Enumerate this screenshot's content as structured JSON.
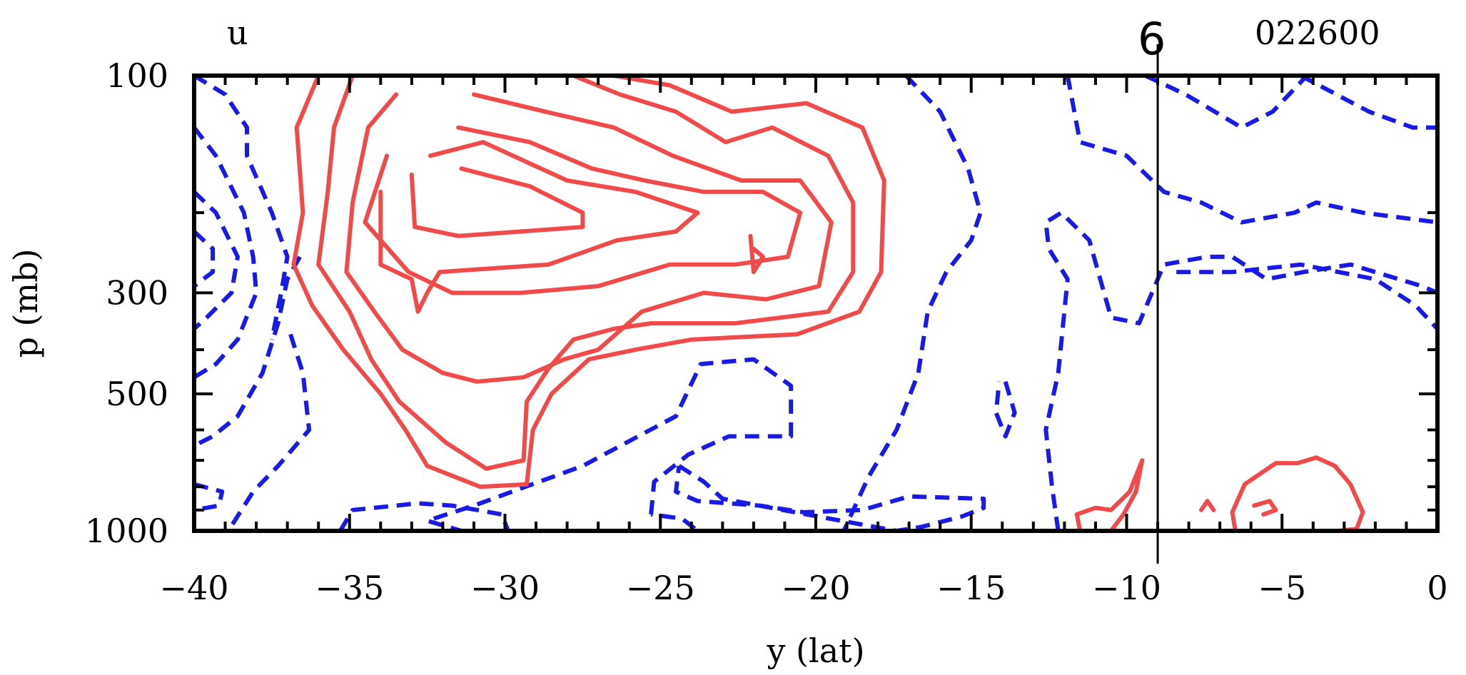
{
  "chart_data": {
    "type": "contour",
    "variable_label": "u",
    "timestamp": "022600",
    "marker": {
      "label": "6",
      "x": -9
    },
    "xlabel": "y (lat)",
    "ylabel": "p (mb)",
    "xlim": [
      -40,
      0
    ],
    "ylim": [
      1000,
      100
    ],
    "y_scale": "log",
    "x_ticks": [
      -40,
      -35,
      -30,
      -25,
      -20,
      -15,
      -10,
      -5,
      0
    ],
    "x_tick_labels": [
      "−40",
      "−35",
      "−30",
      "−25",
      "−20",
      "−15",
      "−10",
      "−5",
      "0"
    ],
    "y_tick_labels": [
      {
        "value": 100,
        "label": "100"
      },
      {
        "value": 300,
        "label": "300"
      },
      {
        "value": 500,
        "label": "500"
      },
      {
        "value": 1000,
        "label": "1000"
      }
    ],
    "y_minor_ticks": [
      100,
      200,
      300,
      400,
      500,
      600,
      700,
      800,
      900,
      1000
    ],
    "x_minor_step": 1,
    "colors": {
      "positive": "#f04a4a",
      "negative": "#1a1ae6",
      "frame": "#000000"
    },
    "positive_contours": [
      [
        [
          -36.0,
          100
        ],
        [
          -36.7,
          130
        ],
        [
          -36.5,
          200
        ],
        [
          -36.8,
          260
        ],
        [
          -36.2,
          320
        ],
        [
          -35.2,
          400
        ],
        [
          -34.0,
          500
        ],
        [
          -33.2,
          600
        ],
        [
          -32.5,
          720
        ],
        [
          -30.8,
          800
        ],
        [
          -29.3,
          790
        ],
        [
          -29.1,
          600
        ],
        [
          -28.5,
          500
        ],
        [
          -27.3,
          420
        ],
        [
          -25.8,
          400
        ],
        [
          -24.0,
          380
        ],
        [
          -20.6,
          370
        ],
        [
          -18.6,
          330
        ],
        [
          -17.9,
          270
        ],
        [
          -17.8,
          170
        ],
        [
          -18.5,
          130
        ],
        [
          -20.3,
          115
        ],
        [
          -22.7,
          120
        ],
        [
          -24.7,
          105
        ],
        [
          -26.5,
          100
        ]
      ],
      [
        [
          -34.9,
          100
        ],
        [
          -35.5,
          130
        ],
        [
          -35.7,
          180
        ],
        [
          -36.0,
          260
        ],
        [
          -35.0,
          330
        ],
        [
          -34.3,
          420
        ],
        [
          -33.4,
          520
        ],
        [
          -31.9,
          640
        ],
        [
          -30.6,
          730
        ],
        [
          -29.4,
          700
        ],
        [
          -29.3,
          520
        ],
        [
          -28.6,
          440
        ],
        [
          -27.8,
          380
        ],
        [
          -26.5,
          360
        ],
        [
          -25.3,
          350
        ],
        [
          -22.6,
          350
        ],
        [
          -19.6,
          330
        ],
        [
          -18.8,
          270
        ],
        [
          -18.8,
          190
        ],
        [
          -19.6,
          150
        ],
        [
          -21.4,
          130
        ],
        [
          -22.9,
          140
        ],
        [
          -24.5,
          120
        ],
        [
          -26.3,
          110
        ],
        [
          -27.8,
          100
        ]
      ],
      [
        [
          -33.5,
          110
        ],
        [
          -34.4,
          130
        ],
        [
          -34.9,
          190
        ],
        [
          -35.1,
          270
        ],
        [
          -34.2,
          330
        ],
        [
          -33.3,
          400
        ],
        [
          -32.0,
          450
        ],
        [
          -30.9,
          470
        ],
        [
          -29.4,
          460
        ],
        [
          -28.1,
          420
        ],
        [
          -27.0,
          400
        ],
        [
          -25.6,
          330
        ],
        [
          -23.6,
          300
        ],
        [
          -21.6,
          310
        ],
        [
          -19.9,
          290
        ],
        [
          -19.5,
          210
        ],
        [
          -20.5,
          170
        ],
        [
          -22.4,
          170
        ],
        [
          -24.6,
          150
        ],
        [
          -26.5,
          130
        ],
        [
          -28.7,
          120
        ],
        [
          -31.0,
          110
        ]
      ],
      [
        [
          -33.8,
          150
        ],
        [
          -34.5,
          210
        ],
        [
          -33.1,
          270
        ],
        [
          -31.7,
          300
        ],
        [
          -29.5,
          300
        ],
        [
          -27.0,
          290
        ],
        [
          -24.7,
          260
        ],
        [
          -22.6,
          260
        ],
        [
          -20.9,
          250
        ],
        [
          -20.5,
          200
        ],
        [
          -21.7,
          180
        ],
        [
          -23.6,
          180
        ],
        [
          -25.5,
          170
        ],
        [
          -27.2,
          160
        ],
        [
          -29.2,
          140
        ],
        [
          -31.5,
          130
        ]
      ],
      [
        [
          -34.0,
          180
        ],
        [
          -34.0,
          260
        ],
        [
          -33.0,
          280
        ],
        [
          -32.8,
          330
        ],
        [
          -32.5,
          300
        ],
        [
          -32.1,
          270
        ],
        [
          -28.6,
          260
        ],
        [
          -26.4,
          230
        ],
        [
          -24.5,
          220
        ],
        [
          -23.8,
          200
        ],
        [
          -25.8,
          180
        ],
        [
          -28.0,
          170
        ],
        [
          -30.7,
          140
        ],
        [
          -32.4,
          150
        ]
      ],
      [
        [
          -33.0,
          165
        ],
        [
          -32.9,
          215
        ],
        [
          -31.5,
          225
        ],
        [
          -29.5,
          220
        ],
        [
          -27.5,
          215
        ],
        [
          -27.5,
          200
        ],
        [
          -29.2,
          175
        ],
        [
          -31.4,
          160
        ]
      ],
      [
        [
          -22.1,
          225
        ],
        [
          -22.0,
          270
        ],
        [
          -21.7,
          250
        ],
        [
          -22.0,
          240
        ]
      ],
      [
        [
          -11.5,
          1000
        ],
        [
          -11.6,
          920
        ],
        [
          -11.0,
          890
        ],
        [
          -10.5,
          900
        ],
        [
          -9.9,
          820
        ],
        [
          -9.5,
          700
        ],
        [
          -9.7,
          820
        ],
        [
          -10.1,
          920
        ],
        [
          -10.5,
          1000
        ]
      ],
      [
        [
          -6.5,
          1000
        ],
        [
          -6.6,
          910
        ],
        [
          -6.2,
          790
        ],
        [
          -5.2,
          710
        ],
        [
          -4.5,
          710
        ],
        [
          -3.9,
          690
        ],
        [
          -3.3,
          720
        ],
        [
          -2.8,
          790
        ],
        [
          -2.4,
          910
        ],
        [
          -2.6,
          990
        ],
        [
          -3.2,
          1000
        ]
      ],
      [
        [
          -7.6,
          900
        ],
        [
          -7.4,
          860
        ],
        [
          -7.2,
          900
        ]
      ],
      [
        [
          -5.9,
          880
        ],
        [
          -5.4,
          860
        ],
        [
          -5.2,
          900
        ],
        [
          -5.6,
          920
        ]
      ]
    ],
    "negative_contours": [
      [
        [
          -40.0,
          100
        ],
        [
          -39.0,
          110
        ],
        [
          -38.3,
          130
        ],
        [
          -38.3,
          150
        ],
        [
          -37.5,
          200
        ],
        [
          -37.0,
          250
        ],
        [
          -37.2,
          300
        ],
        [
          -37.5,
          380
        ]
      ],
      [
        [
          -40.0,
          130
        ],
        [
          -39.3,
          150
        ],
        [
          -38.4,
          200
        ],
        [
          -38.1,
          250
        ],
        [
          -38.0,
          300
        ],
        [
          -38.6,
          380
        ],
        [
          -39.3,
          430
        ],
        [
          -40.0,
          460
        ]
      ],
      [
        [
          -40.0,
          180
        ],
        [
          -39.3,
          200
        ],
        [
          -38.6,
          250
        ],
        [
          -38.8,
          300
        ],
        [
          -39.6,
          340
        ],
        [
          -40.0,
          360
        ]
      ],
      [
        [
          -40.0,
          220
        ],
        [
          -39.4,
          240
        ],
        [
          -39.4,
          270
        ],
        [
          -40.0,
          290
        ]
      ],
      [
        [
          -36.6,
          250
        ],
        [
          -37.0,
          280
        ],
        [
          -37.3,
          350
        ],
        [
          -37.8,
          450
        ],
        [
          -38.6,
          560
        ],
        [
          -39.4,
          620
        ],
        [
          -40.0,
          650
        ]
      ],
      [
        [
          -36.9,
          370
        ],
        [
          -36.5,
          450
        ],
        [
          -36.3,
          600
        ],
        [
          -37.3,
          720
        ],
        [
          -38.1,
          820
        ],
        [
          -38.9,
          1000
        ]
      ],
      [
        [
          -40.0,
          790
        ],
        [
          -39.1,
          820
        ],
        [
          -39.2,
          880
        ],
        [
          -40.0,
          900
        ]
      ],
      [
        [
          -35.3,
          1000
        ],
        [
          -34.9,
          900
        ],
        [
          -32.8,
          870
        ],
        [
          -31.7,
          880
        ],
        [
          -30.1,
          920
        ],
        [
          -29.9,
          1000
        ]
      ],
      [
        [
          -25.3,
          920
        ],
        [
          -25.2,
          780
        ],
        [
          -24.1,
          680
        ],
        [
          -22.8,
          620
        ],
        [
          -20.8,
          620
        ],
        [
          -20.8,
          480
        ],
        [
          -22.0,
          420
        ],
        [
          -23.7,
          430
        ],
        [
          -24.5,
          560
        ],
        [
          -27.5,
          720
        ],
        [
          -31.0,
          880
        ],
        [
          -32.5,
          950
        ],
        [
          -31.4,
          1000
        ],
        [
          -23.8,
          1000
        ],
        [
          -24.3,
          940
        ],
        [
          -25.3,
          920
        ]
      ],
      [
        [
          -24.4,
          720
        ],
        [
          -23.6,
          780
        ],
        [
          -23.0,
          850
        ],
        [
          -20.3,
          920
        ],
        [
          -17.4,
          1000
        ],
        [
          -16.6,
          980
        ],
        [
          -15.3,
          930
        ],
        [
          -14.6,
          890
        ],
        [
          -14.6,
          850
        ],
        [
          -17.0,
          840
        ],
        [
          -18.5,
          900
        ],
        [
          -20.4,
          910
        ],
        [
          -21.8,
          880
        ],
        [
          -23.8,
          860
        ],
        [
          -24.5,
          820
        ],
        [
          -24.4,
          720
        ]
      ],
      [
        [
          -17.1,
          100
        ],
        [
          -16.0,
          120
        ],
        [
          -15.1,
          160
        ],
        [
          -14.7,
          200
        ],
        [
          -15.0,
          230
        ],
        [
          -15.8,
          270
        ],
        [
          -16.4,
          330
        ],
        [
          -16.7,
          450
        ],
        [
          -17.4,
          600
        ],
        [
          -18.3,
          760
        ],
        [
          -19.1,
          1000
        ]
      ],
      [
        [
          -13.9,
          470
        ],
        [
          -13.6,
          550
        ],
        [
          -13.9,
          620
        ],
        [
          -14.2,
          550
        ],
        [
          -14.1,
          470
        ]
      ],
      [
        [
          -12.2,
          1000
        ],
        [
          -12.4,
          800
        ],
        [
          -12.6,
          600
        ],
        [
          -12.2,
          450
        ],
        [
          -11.9,
          280
        ],
        [
          -12.5,
          240
        ],
        [
          -12.6,
          210
        ],
        [
          -12.1,
          200
        ],
        [
          -11.2,
          230
        ],
        [
          -10.5,
          340
        ],
        [
          -9.6,
          350
        ],
        [
          -8.8,
          260
        ],
        [
          -7.4,
          250
        ],
        [
          -6.6,
          250
        ],
        [
          -5.5,
          280
        ],
        [
          -4.3,
          270
        ],
        [
          -2.8,
          260
        ],
        [
          -0.5,
          290
        ],
        [
          0,
          300
        ]
      ],
      [
        [
          -11.9,
          100
        ],
        [
          -11.5,
          140
        ],
        [
          -10.0,
          150
        ],
        [
          -8.8,
          180
        ],
        [
          -7.6,
          190
        ],
        [
          -6.3,
          210
        ],
        [
          -4.6,
          200
        ],
        [
          -3.9,
          190
        ],
        [
          -2.4,
          200
        ],
        [
          0,
          210
        ]
      ],
      [
        [
          -9.4,
          100
        ],
        [
          -8.1,
          110
        ],
        [
          -6.3,
          130
        ],
        [
          -5.3,
          120
        ],
        [
          -4.2,
          100
        ]
      ],
      [
        [
          -4.4,
          100
        ],
        [
          -2.2,
          120
        ],
        [
          -0.8,
          130
        ],
        [
          0,
          130
        ]
      ],
      [
        [
          -8.4,
          270
        ],
        [
          -6.6,
          270
        ],
        [
          -4.4,
          260
        ],
        [
          -2.0,
          280
        ],
        [
          -0.7,
          320
        ],
        [
          0,
          360
        ]
      ],
      [
        [
          -1.5,
          100
        ],
        [
          0,
          100
        ]
      ]
    ]
  }
}
